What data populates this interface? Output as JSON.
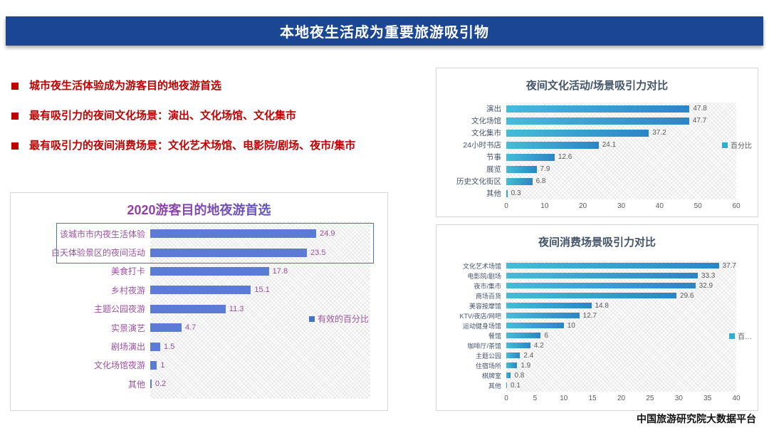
{
  "header": {
    "title": "本地夜生活成为重要旅游吸引物"
  },
  "bullets": [
    "城市夜生活体验成为游客目的地夜游首选",
    "最有吸引力的夜间文化场景：演出、文化场馆、文化集市",
    "最有吸引力的夜间消费场景：文化艺术场馆、电影院/剧场、夜市/集市"
  ],
  "footer": {
    "source": "中国旅游研究院大数据平台"
  },
  "colors": {
    "header_bg": "#1B4693",
    "bullet_red": "#C00000",
    "left_bar_blue": "#5B7BD5",
    "right_bar_teal_start": "#45BCD7",
    "right_bar_teal_end": "#2C85C5",
    "purple_label": "#9B51A0",
    "slate_label": "#44546A",
    "axis_gray": "#595959",
    "highlight_border": "#4472C4"
  },
  "chart_data": [
    {
      "type": "bar",
      "orientation": "horizontal",
      "title": "2020游客目的地夜游首选",
      "categories": [
        "该城市市内夜生活体验",
        "白天体验景区的夜间活动",
        "美食打卡",
        "乡村夜游",
        "主题公园夜游",
        "实景演艺",
        "剧场演出",
        "文化场馆夜游",
        "其他"
      ],
      "values": [
        24.9,
        23.5,
        17.8,
        15.1,
        11.3,
        4.7,
        1.5,
        1,
        0.2
      ],
      "legend": "有效的百分比",
      "legend_position": "right-middle",
      "xlim": [
        0,
        33
      ],
      "axis_visible": false,
      "grid": false,
      "highlighted_categories": [
        "该城市市内夜生活体验",
        "白天体验景区的夜间活动"
      ]
    },
    {
      "type": "bar",
      "orientation": "horizontal",
      "title": "夜间文化活动/场景吸引力对比",
      "categories": [
        "演出",
        "文化场馆",
        "文化集市",
        "24小时书店",
        "节事",
        "展览",
        "历史文化街区",
        "其他"
      ],
      "values": [
        47.8,
        47.7,
        37.2,
        24.1,
        12.6,
        7.9,
        6.8,
        0.3
      ],
      "legend": "百分比",
      "legend_position": "right-middle",
      "xlim": [
        0,
        60
      ],
      "xticks": [
        0,
        10,
        20,
        30,
        40,
        50,
        60
      ],
      "grid": false
    },
    {
      "type": "bar",
      "orientation": "horizontal",
      "title": "夜间消费场景吸引力对比",
      "categories": [
        "文化艺术场馆",
        "电影院/剧场",
        "夜市/集市",
        "商场百货",
        "美容按摩馆",
        "KTV/夜店/网吧",
        "运动健身场馆",
        "餐馆",
        "咖啡厅/茶馆",
        "主题公园",
        "住宿场所",
        "棋牌室",
        "其他"
      ],
      "values": [
        37.7,
        33.3,
        32.9,
        29.6,
        14.8,
        12.7,
        10,
        6,
        4.2,
        2.4,
        1.9,
        0.8,
        0.1
      ],
      "legend": "百…",
      "legend_position": "right-middle",
      "xlim": [
        0,
        40
      ],
      "xticks": [
        0,
        5,
        10,
        15,
        20,
        25,
        30,
        35,
        40
      ],
      "grid": false
    }
  ]
}
